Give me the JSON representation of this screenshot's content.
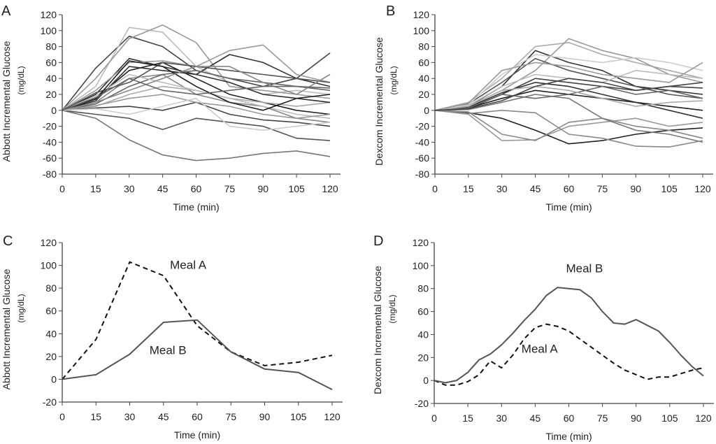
{
  "chart_data": [
    {
      "panel_label": "A",
      "type": "line",
      "ylabel": "Abbott Incremental Glucose",
      "yunit": "(mg/dL)",
      "xlabel": "Time (min)",
      "xlim": [
        0,
        120
      ],
      "ylim": [
        -80,
        120
      ],
      "xticks": [
        0,
        15,
        30,
        45,
        60,
        75,
        90,
        105,
        120
      ],
      "yticks": [
        -80,
        -60,
        -40,
        -20,
        0,
        20,
        40,
        60,
        80,
        100,
        120
      ],
      "x": [
        0,
        15,
        30,
        45,
        60,
        75,
        90,
        105,
        120
      ],
      "series": [
        {
          "values": [
            0,
            53,
            93,
            80,
            50,
            40,
            30,
            40,
            72
          ],
          "color": "#444444"
        },
        {
          "values": [
            0,
            30,
            104,
            98,
            55,
            35,
            20,
            25,
            20
          ],
          "color": "#bbbbbb"
        },
        {
          "values": [
            0,
            40,
            90,
            107,
            85,
            30,
            25,
            20,
            15
          ],
          "color": "#999999"
        },
        {
          "values": [
            0,
            20,
            65,
            55,
            45,
            70,
            60,
            40,
            30
          ],
          "color": "#333333"
        },
        {
          "values": [
            0,
            25,
            60,
            62,
            55,
            75,
            82,
            45,
            35
          ],
          "color": "#999999"
        },
        {
          "values": [
            0,
            -10,
            -37,
            -56,
            -63,
            -60,
            -54,
            -51,
            -58
          ],
          "color": "#777777"
        },
        {
          "values": [
            0,
            -5,
            -10,
            -24,
            -10,
            -15,
            -20,
            -35,
            -38
          ],
          "color": "#555555"
        },
        {
          "values": [
            0,
            10,
            40,
            45,
            20,
            10,
            5,
            -10,
            -15
          ],
          "color": "#888888"
        },
        {
          "values": [
            0,
            15,
            50,
            60,
            40,
            20,
            10,
            0,
            -5
          ],
          "color": "#222222"
        },
        {
          "values": [
            0,
            5,
            20,
            30,
            25,
            15,
            10,
            5,
            10
          ],
          "color": "#aaaaaa"
        },
        {
          "values": [
            0,
            8,
            30,
            45,
            50,
            40,
            35,
            30,
            25
          ],
          "color": "#666666"
        },
        {
          "values": [
            0,
            12,
            55,
            50,
            45,
            35,
            20,
            15,
            10
          ],
          "color": "#333333"
        },
        {
          "values": [
            0,
            3,
            5,
            0,
            10,
            -5,
            -12,
            -15,
            -20
          ],
          "color": "#444444"
        },
        {
          "values": [
            0,
            18,
            45,
            35,
            25,
            15,
            5,
            -5,
            -10
          ],
          "color": "#bbbbbb"
        },
        {
          "values": [
            0,
            22,
            35,
            60,
            55,
            50,
            45,
            40,
            35
          ],
          "color": "#555555"
        },
        {
          "values": [
            0,
            6,
            15,
            20,
            10,
            5,
            -5,
            -10,
            -5
          ],
          "color": "#999999"
        },
        {
          "values": [
            0,
            14,
            62,
            55,
            30,
            10,
            0,
            15,
            20
          ],
          "color": "#222222"
        },
        {
          "values": [
            0,
            10,
            25,
            40,
            55,
            55,
            35,
            20,
            45
          ],
          "color": "#888888"
        },
        {
          "values": [
            0,
            2,
            -5,
            5,
            15,
            -20,
            -25,
            -20,
            -15
          ],
          "color": "#cccccc"
        },
        {
          "values": [
            0,
            16,
            40,
            25,
            20,
            25,
            30,
            30,
            28
          ],
          "color": "#666666"
        }
      ]
    },
    {
      "panel_label": "B",
      "type": "line",
      "ylabel": "Dexcom Incremental Glucose",
      "yunit": "(mg/dL)",
      "xlabel": "Time (min)",
      "xlim": [
        0,
        120
      ],
      "ylim": [
        -80,
        120
      ],
      "xticks": [
        0,
        15,
        30,
        45,
        60,
        75,
        90,
        105,
        120
      ],
      "yticks": [
        -80,
        -60,
        -40,
        -20,
        0,
        20,
        40,
        60,
        80,
        100,
        120
      ],
      "x": [
        0,
        15,
        30,
        45,
        60,
        75,
        90,
        105,
        120
      ],
      "series": [
        {
          "values": [
            0,
            -5,
            -38,
            -37,
            -20,
            -15,
            -10,
            -20,
            -15
          ],
          "color": "#999999"
        },
        {
          "values": [
            0,
            -3,
            -10,
            -25,
            -42,
            -38,
            -30,
            -25,
            -22
          ],
          "color": "#222222"
        },
        {
          "values": [
            0,
            -2,
            -30,
            -38,
            -15,
            -10,
            -20,
            -25,
            -35
          ],
          "color": "#888888"
        },
        {
          "values": [
            0,
            5,
            30,
            75,
            60,
            50,
            30,
            25,
            20
          ],
          "color": "#333333"
        },
        {
          "values": [
            0,
            10,
            40,
            80,
            85,
            70,
            60,
            50,
            40
          ],
          "color": "#aaaaaa"
        },
        {
          "values": [
            0,
            5,
            25,
            50,
            90,
            75,
            65,
            45,
            35
          ],
          "color": "#999999"
        },
        {
          "values": [
            0,
            8,
            35,
            65,
            50,
            40,
            30,
            20,
            15
          ],
          "color": "#555555"
        },
        {
          "values": [
            0,
            2,
            20,
            40,
            35,
            30,
            25,
            30,
            35
          ],
          "color": "#444444"
        },
        {
          "values": [
            0,
            3,
            15,
            25,
            20,
            15,
            10,
            5,
            0
          ],
          "color": "#222222"
        },
        {
          "values": [
            0,
            6,
            30,
            45,
            40,
            35,
            50,
            45,
            40
          ],
          "color": "#bbbbbb"
        },
        {
          "values": [
            0,
            1,
            10,
            20,
            15,
            -10,
            -25,
            -30,
            -40
          ],
          "color": "#777777"
        },
        {
          "values": [
            0,
            -4,
            0,
            -3,
            -30,
            -35,
            -45,
            -46,
            -38
          ],
          "color": "#888888"
        },
        {
          "values": [
            0,
            4,
            22,
            35,
            30,
            20,
            10,
            0,
            -10
          ],
          "color": "#333333"
        },
        {
          "values": [
            0,
            7,
            45,
            70,
            65,
            60,
            66,
            60,
            50
          ],
          "color": "#cccccc"
        },
        {
          "values": [
            0,
            3,
            20,
            15,
            20,
            30,
            20,
            25,
            15
          ],
          "color": "#666666"
        },
        {
          "values": [
            0,
            5,
            25,
            30,
            25,
            15,
            5,
            10,
            12
          ],
          "color": "#aaaaaa"
        },
        {
          "values": [
            0,
            9,
            50,
            60,
            55,
            45,
            40,
            35,
            60
          ],
          "color": "#999999"
        },
        {
          "values": [
            0,
            2,
            12,
            30,
            40,
            35,
            25,
            30,
            28
          ],
          "color": "#444444"
        }
      ]
    },
    {
      "panel_label": "C",
      "type": "line",
      "ylabel": "Abbott Incremental Glucose",
      "yunit": "(mg/dL)",
      "xlabel": "Time (min)",
      "xlim": [
        0,
        120
      ],
      "ylim": [
        -20,
        120
      ],
      "xticks": [
        0,
        15,
        30,
        45,
        60,
        75,
        90,
        105,
        120
      ],
      "yticks": [
        -20,
        0,
        20,
        40,
        60,
        80,
        100,
        120
      ],
      "x": [
        0,
        15,
        30,
        45,
        60,
        75,
        90,
        105,
        120
      ],
      "series": [
        {
          "name": "Meal A",
          "values": [
            0,
            35,
            103,
            91,
            47,
            24,
            12,
            15,
            21
          ],
          "color": "#111111",
          "dash": true
        },
        {
          "name": "Meal B",
          "values": [
            0,
            4,
            22,
            50,
            52,
            24,
            9,
            6,
            -9
          ],
          "color": "#555555",
          "dash": false
        }
      ],
      "annotations": [
        {
          "text": "Meal A",
          "x": 56,
          "y": 97
        },
        {
          "text": "Meal B",
          "x": 47,
          "y": 22
        }
      ]
    },
    {
      "panel_label": "D",
      "type": "line",
      "ylabel": "Dexcom Incremental Glucose",
      "yunit": "(mg/dL)",
      "xlabel": "Time (min)",
      "xlim": [
        0,
        120
      ],
      "ylim": [
        -20,
        120
      ],
      "xticks": [
        0,
        15,
        30,
        45,
        60,
        75,
        90,
        105,
        120
      ],
      "yticks": [
        -20,
        0,
        20,
        40,
        60,
        80,
        100,
        120
      ],
      "x": [
        0,
        5,
        10,
        15,
        20,
        25,
        30,
        35,
        40,
        45,
        50,
        55,
        60,
        65,
        70,
        75,
        80,
        85,
        90,
        95,
        100,
        105,
        110,
        115,
        120
      ],
      "series": [
        {
          "name": "Meal A",
          "values": [
            0,
            -4,
            -4,
            -1,
            5,
            17,
            11,
            22,
            36,
            46,
            49,
            47,
            43,
            36,
            29,
            22,
            15,
            9,
            5,
            1,
            3,
            3,
            6,
            9,
            11
          ],
          "color": "#111111",
          "dash": true
        },
        {
          "name": "Meal B",
          "values": [
            0,
            -2,
            0,
            7,
            18,
            23,
            31,
            41,
            52,
            62,
            74,
            81,
            80,
            79,
            72,
            60,
            50,
            49,
            53,
            48,
            43,
            33,
            22,
            12,
            4
          ],
          "color": "#555555",
          "dash": false
        }
      ],
      "annotations": [
        {
          "text": "Meal B",
          "x": 67,
          "y": 94
        },
        {
          "text": "Meal A",
          "x": 47,
          "y": 24
        }
      ]
    }
  ]
}
